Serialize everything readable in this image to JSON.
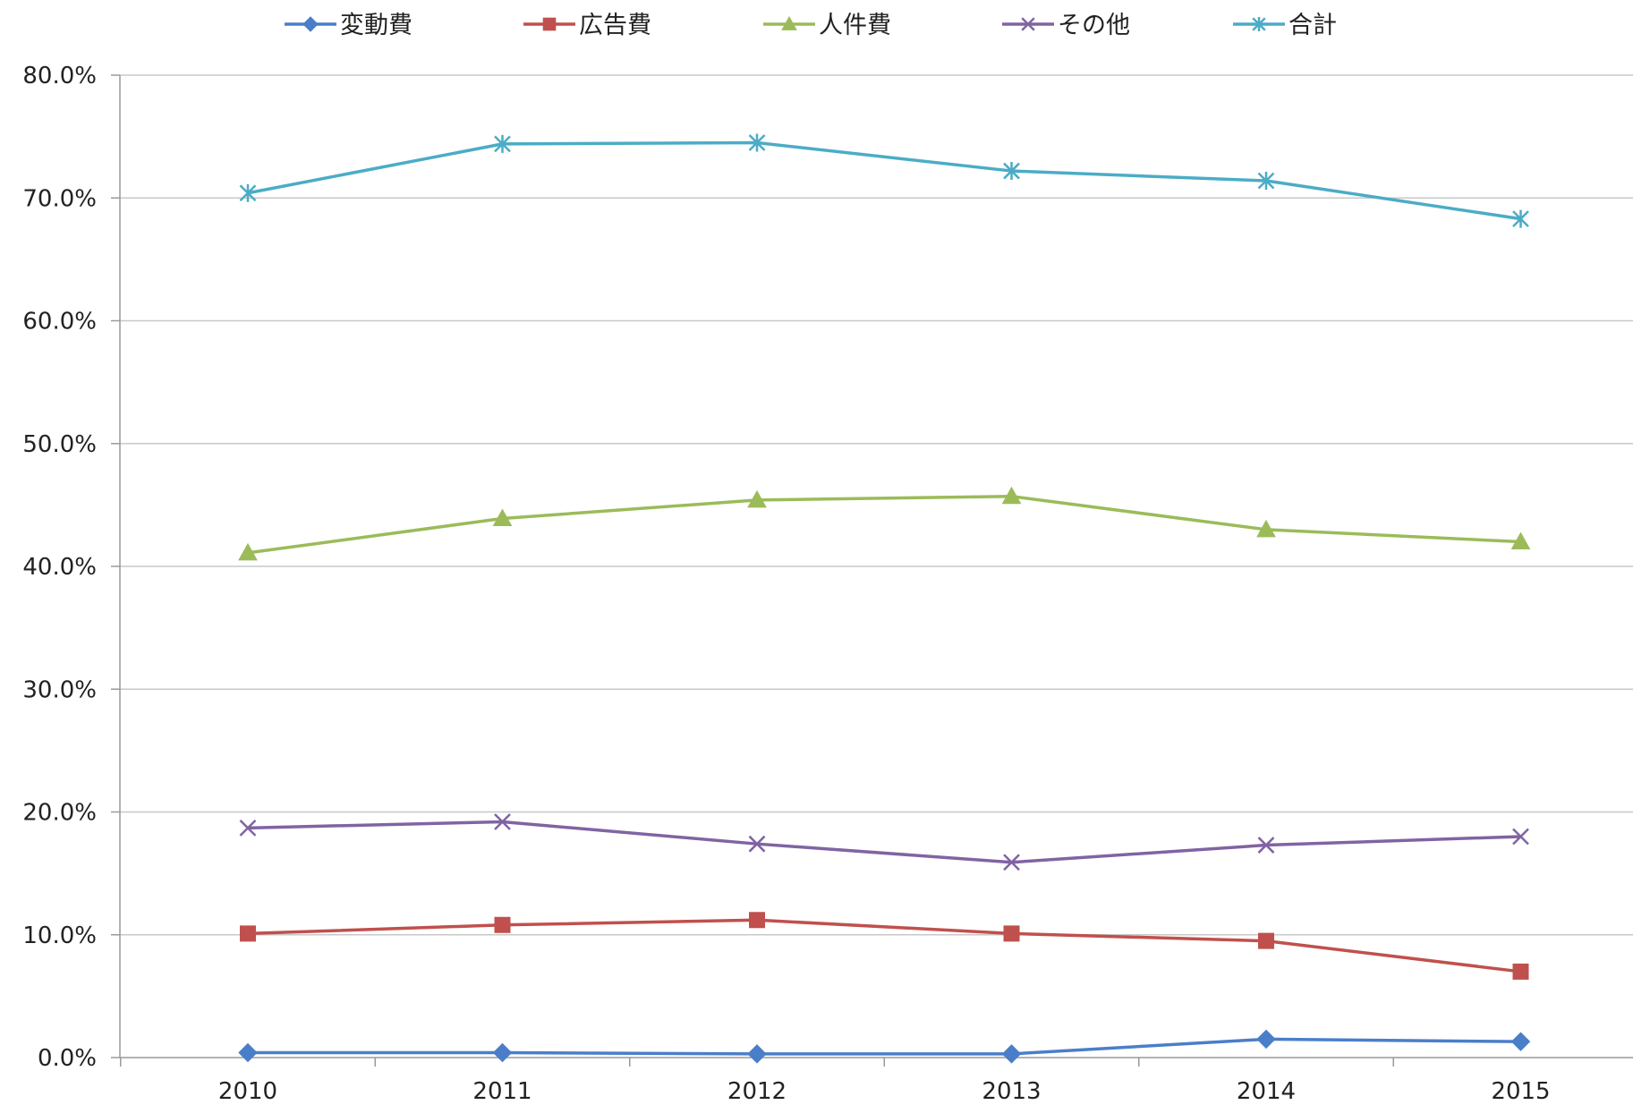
{
  "chart_data": {
    "type": "line",
    "title": "",
    "xlabel": "",
    "ylabel": "",
    "x": [
      "2010",
      "2011",
      "2012",
      "2013",
      "2014",
      "2015"
    ],
    "ylim": [
      0,
      80
    ],
    "yticks": [
      0,
      10,
      20,
      30,
      40,
      50,
      60,
      70,
      80
    ],
    "ytick_labels": [
      "0.0%",
      "10.0%",
      "20.0%",
      "30.0%",
      "40.0%",
      "50.0%",
      "60.0%",
      "70.0%",
      "80.0%"
    ],
    "grid": true,
    "legend_position": "top",
    "series": [
      {
        "name": "変動費",
        "color": "#4a7ec9",
        "marker": "diamond",
        "values": [
          0.4,
          0.4,
          0.3,
          0.3,
          1.5,
          1.3
        ]
      },
      {
        "name": "広告費",
        "color": "#c0504d",
        "marker": "square",
        "values": [
          10.1,
          10.8,
          11.2,
          10.1,
          9.5,
          7.0
        ]
      },
      {
        "name": "人件費",
        "color": "#9bbb59",
        "marker": "triangle",
        "values": [
          41.1,
          43.9,
          45.4,
          45.7,
          43.0,
          42.0
        ]
      },
      {
        "name": "その他",
        "color": "#8064a2",
        "marker": "x",
        "values": [
          18.7,
          19.2,
          17.4,
          15.9,
          17.3,
          18.0
        ]
      },
      {
        "name": "合計",
        "color": "#4bacc6",
        "marker": "star",
        "values": [
          70.4,
          74.4,
          74.5,
          72.2,
          71.4,
          68.3
        ]
      }
    ]
  }
}
